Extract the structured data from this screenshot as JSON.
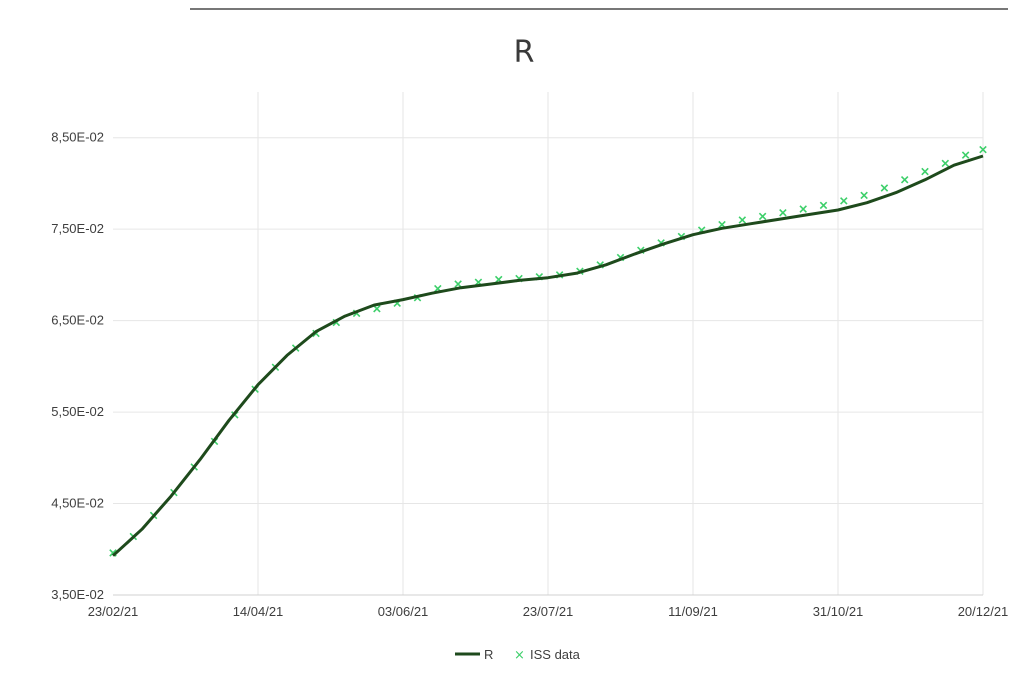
{
  "chart_data": {
    "type": "line",
    "title": "R",
    "xlabel": "",
    "ylabel": "",
    "x_type": "date",
    "x_tick_labels": [
      "23/02/21",
      "14/04/21",
      "03/06/21",
      "23/07/21",
      "11/09/21",
      "31/10/21",
      "20/12/21"
    ],
    "y_tick_labels": [
      "3,50E-02",
      "4,50E-02",
      "5,50E-02",
      "6,50E-02",
      "7,50E-02",
      "8,50E-02"
    ],
    "xlim": [
      "2021-02-23",
      "2021-12-20"
    ],
    "ylim": [
      0.035,
      0.09
    ],
    "yticks": [
      0.035,
      0.045,
      0.055,
      0.065,
      0.075,
      0.085
    ],
    "grid": true,
    "legend_position": "bottom-center",
    "series": [
      {
        "name": "R",
        "style": "line",
        "color": "#1e4a1c",
        "points": [
          [
            "2021-02-23",
            0.0393
          ],
          [
            "2021-03-05",
            0.0422
          ],
          [
            "2021-03-15",
            0.0458
          ],
          [
            "2021-03-25",
            0.0498
          ],
          [
            "2021-04-04",
            0.0541
          ],
          [
            "2021-04-14",
            0.058
          ],
          [
            "2021-04-24",
            0.0612
          ],
          [
            "2021-05-04",
            0.0638
          ],
          [
            "2021-05-14",
            0.0655
          ],
          [
            "2021-05-24",
            0.0667
          ],
          [
            "2021-06-03",
            0.0673
          ],
          [
            "2021-06-13",
            0.068
          ],
          [
            "2021-06-23",
            0.0686
          ],
          [
            "2021-07-03",
            0.069
          ],
          [
            "2021-07-13",
            0.0694
          ],
          [
            "2021-07-23",
            0.0697
          ],
          [
            "2021-08-02",
            0.0702
          ],
          [
            "2021-08-12",
            0.0711
          ],
          [
            "2021-08-22",
            0.0723
          ],
          [
            "2021-09-01",
            0.0734
          ],
          [
            "2021-09-11",
            0.0744
          ],
          [
            "2021-09-21",
            0.0751
          ],
          [
            "2021-10-01",
            0.0756
          ],
          [
            "2021-10-11",
            0.0761
          ],
          [
            "2021-10-21",
            0.0766
          ],
          [
            "2021-10-31",
            0.0771
          ],
          [
            "2021-11-10",
            0.0779
          ],
          [
            "2021-11-20",
            0.079
          ],
          [
            "2021-11-30",
            0.0804
          ],
          [
            "2021-12-10",
            0.082
          ],
          [
            "2021-12-20",
            0.083
          ]
        ]
      },
      {
        "name": "ISS data",
        "style": "markers",
        "color": "#3dcf6a",
        "points": [
          [
            "2021-02-23",
            0.0396
          ],
          [
            "2021-03-02",
            0.0414
          ],
          [
            "2021-03-09",
            0.0437
          ],
          [
            "2021-03-16",
            0.0462
          ],
          [
            "2021-03-23",
            0.049
          ],
          [
            "2021-03-30",
            0.0518
          ],
          [
            "2021-04-06",
            0.0547
          ],
          [
            "2021-04-13",
            0.0575
          ],
          [
            "2021-04-20",
            0.0599
          ],
          [
            "2021-04-27",
            0.062
          ],
          [
            "2021-05-04",
            0.0636
          ],
          [
            "2021-05-11",
            0.0648
          ],
          [
            "2021-05-18",
            0.0658
          ],
          [
            "2021-05-25",
            0.0663
          ],
          [
            "2021-06-01",
            0.0669
          ],
          [
            "2021-06-08",
            0.0675
          ],
          [
            "2021-06-15",
            0.0685
          ],
          [
            "2021-06-22",
            0.069
          ],
          [
            "2021-06-29",
            0.0692
          ],
          [
            "2021-07-06",
            0.0695
          ],
          [
            "2021-07-13",
            0.0696
          ],
          [
            "2021-07-20",
            0.0698
          ],
          [
            "2021-07-27",
            0.07
          ],
          [
            "2021-08-03",
            0.0704
          ],
          [
            "2021-08-10",
            0.0711
          ],
          [
            "2021-08-17",
            0.0719
          ],
          [
            "2021-08-24",
            0.0727
          ],
          [
            "2021-08-31",
            0.0735
          ],
          [
            "2021-09-07",
            0.0742
          ],
          [
            "2021-09-14",
            0.0749
          ],
          [
            "2021-09-21",
            0.0755
          ],
          [
            "2021-09-28",
            0.076
          ],
          [
            "2021-10-05",
            0.0764
          ],
          [
            "2021-10-12",
            0.0768
          ],
          [
            "2021-10-19",
            0.0772
          ],
          [
            "2021-10-26",
            0.0776
          ],
          [
            "2021-11-02",
            0.0781
          ],
          [
            "2021-11-09",
            0.0787
          ],
          [
            "2021-11-16",
            0.0795
          ],
          [
            "2021-11-23",
            0.0804
          ],
          [
            "2021-11-30",
            0.0813
          ],
          [
            "2021-12-07",
            0.0822
          ],
          [
            "2021-12-14",
            0.0831
          ],
          [
            "2021-12-20",
            0.0837
          ]
        ]
      }
    ]
  }
}
